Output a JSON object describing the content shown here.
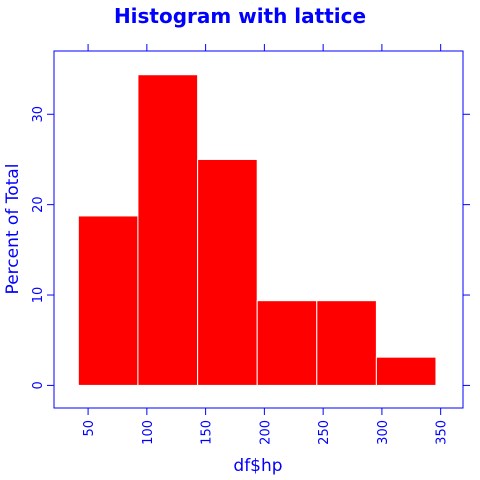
{
  "chart_data": {
    "type": "bar",
    "title": "Histogram with lattice",
    "xlabel": "df$hp",
    "ylabel": "Percent of Total",
    "xlim": [
      21,
      369
    ],
    "ylim": [
      -2.5,
      37
    ],
    "x_ticks": [
      50,
      100,
      150,
      200,
      250,
      300,
      350
    ],
    "y_ticks": [
      0,
      10,
      20,
      30
    ],
    "bins": [
      {
        "start": 41.7,
        "end": 92.4,
        "value": 18.75
      },
      {
        "start": 92.4,
        "end": 143.2,
        "value": 34.375
      },
      {
        "start": 143.2,
        "end": 193.9,
        "value": 25.0
      },
      {
        "start": 193.9,
        "end": 244.6,
        "value": 9.375
      },
      {
        "start": 244.6,
        "end": 295.3,
        "value": 9.375
      },
      {
        "start": 295.3,
        "end": 346.0,
        "value": 3.125
      }
    ],
    "colors": {
      "bar_fill": "#ff0000",
      "bar_border": "#ffffff",
      "axis": "#0000ff",
      "text": "#0000ff"
    },
    "grid": false
  }
}
